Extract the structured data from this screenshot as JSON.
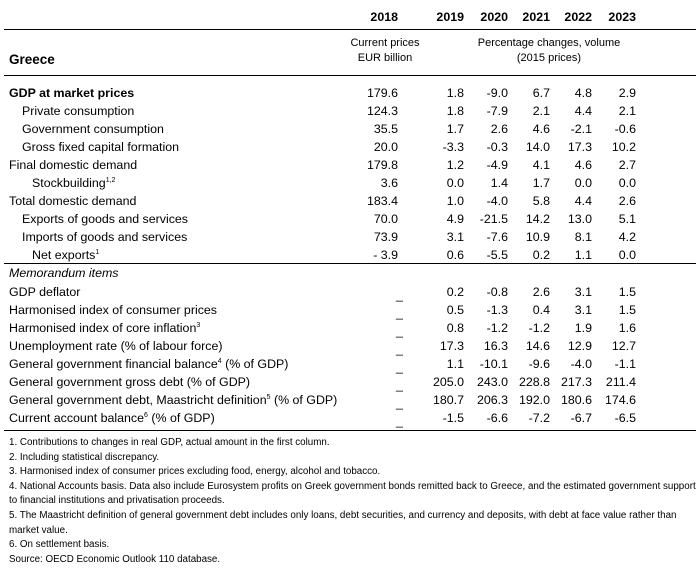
{
  "header": {
    "years": [
      "2018",
      "2019",
      "2020",
      "2021",
      "2022",
      "2023"
    ],
    "col2018_line1": "Current prices",
    "col2018_line2": "EUR billion",
    "pct_line1": "Percentage changes, volume",
    "pct_line2": "(2015 prices)",
    "country": "Greece"
  },
  "rows": [
    {
      "label": "GDP at market prices",
      "v2018": "179.6",
      "v": [
        "1.8",
        "-9.0",
        "6.7",
        "4.8",
        "2.9"
      ]
    },
    {
      "label": "Private consumption",
      "v2018": "124.3",
      "v": [
        "1.8",
        "-7.9",
        "2.1",
        "4.4",
        "2.1"
      ]
    },
    {
      "label": "Government consumption",
      "v2018": "35.5",
      "v": [
        "1.7",
        "2.6",
        "4.6",
        "-2.1",
        "-0.6"
      ]
    },
    {
      "label": "Gross fixed capital formation",
      "v2018": "20.0",
      "v": [
        "-3.3",
        "-0.3",
        "14.0",
        "17.3",
        "10.2"
      ]
    },
    {
      "label": "Final domestic demand",
      "v2018": "179.8",
      "v": [
        "1.2",
        "-4.9",
        "4.1",
        "4.6",
        "2.7"
      ]
    },
    {
      "label": "Stockbuilding",
      "sup": "1,2",
      "v2018": "3.6",
      "v": [
        "0.0",
        "1.4",
        "1.7",
        "0.0",
        "0.0"
      ]
    },
    {
      "label": "Total domestic demand",
      "v2018": "183.4",
      "v": [
        "1.0",
        "-4.0",
        "5.8",
        "4.4",
        "2.6"
      ]
    },
    {
      "label": "Exports of goods and services",
      "v2018": "70.0",
      "v": [
        "4.9",
        "-21.5",
        "14.2",
        "13.0",
        "5.1"
      ]
    },
    {
      "label": "Imports of goods and services",
      "v2018": "73.9",
      "v": [
        "3.1",
        "-7.6",
        "10.9",
        "8.1",
        "4.2"
      ]
    },
    {
      "label": "Net exports",
      "sup": "1",
      "v2018": "- 3.9",
      "v": [
        "0.6",
        "-5.5",
        "0.2",
        "1.1",
        "0.0"
      ]
    }
  ],
  "memo": {
    "title": "Memorandum items",
    "dash": "_",
    "rows": [
      {
        "label": "GDP deflator",
        "v": [
          "0.2",
          "-0.8",
          "2.6",
          "3.1",
          "1.5"
        ]
      },
      {
        "label": "Harmonised index of consumer prices",
        "v": [
          "0.5",
          "-1.3",
          "0.4",
          "3.1",
          "1.5"
        ]
      },
      {
        "label": "Harmonised index of core inflation",
        "sup": "3",
        "v": [
          "0.8",
          "-1.2",
          "-1.2",
          "1.9",
          "1.6"
        ]
      },
      {
        "label": "Unemployment rate (% of labour force)",
        "v": [
          "17.3",
          "16.3",
          "14.6",
          "12.9",
          "12.7"
        ]
      },
      {
        "label": "General government financial balance",
        "sup": "4",
        "suffix": " (% of GDP)",
        "v": [
          "1.1",
          "-10.1",
          "-9.6",
          "-4.0",
          "-1.1"
        ]
      },
      {
        "label": "General government gross debt (% of GDP)",
        "v": [
          "205.0",
          "243.0",
          "228.8",
          "217.3",
          "211.4"
        ]
      },
      {
        "label": "General government debt, Maastricht definition",
        "sup": "5",
        "suffix": " (% of GDP)",
        "v": [
          "180.7",
          "206.3",
          "192.0",
          "180.6",
          "174.6"
        ]
      },
      {
        "label": "Current account balance",
        "sup": "6",
        "suffix": " (% of GDP)",
        "v": [
          "-1.5",
          "-6.6",
          "-7.2",
          "-6.7",
          "-6.5"
        ]
      }
    ]
  },
  "notes": [
    "1. Contributions to changes in real GDP, actual amount in the first column.",
    "2. Including statistical discrepancy.",
    "3. Harmonised index of consumer prices excluding food, energy, alcohol and tobacco.",
    "4. National Accounts basis. Data also include Eurosystem profits on Greek government bonds remitted back to Greece, and the estimated government support to financial institutions and privatisation proceeds.",
    "5. The Maastricht definition of general government debt includes only loans, debt securities, and currency and deposits, with debt at face value rather than market value.",
    "6. On settlement basis.",
    "Source: OECD Economic Outlook 110 database."
  ]
}
